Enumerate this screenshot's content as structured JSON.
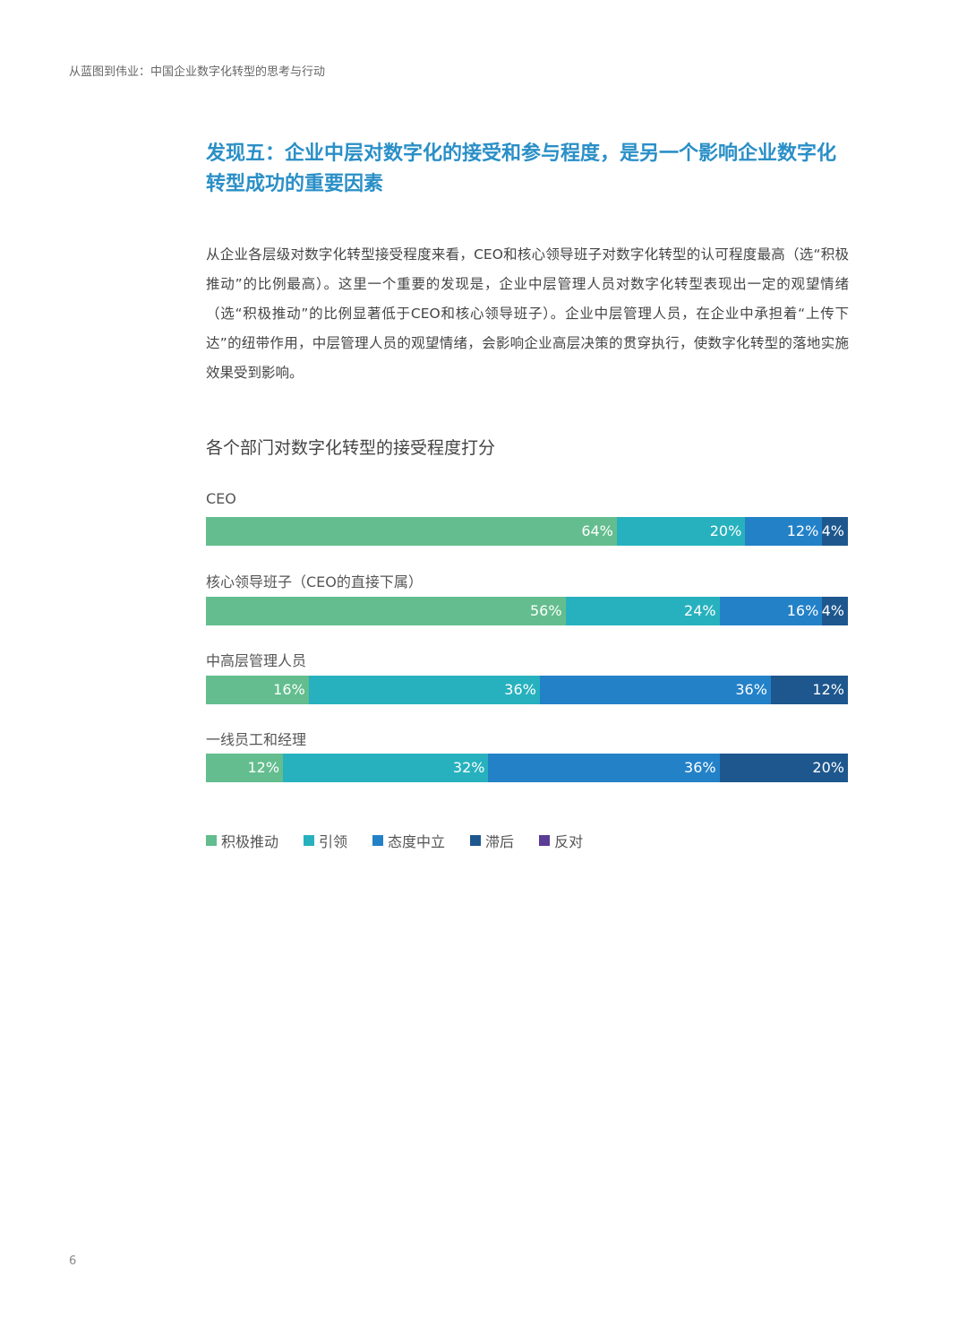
{
  "header": "从蓝图到伟业：中国企业数字化转型的思考与行动",
  "title": "发现五：企业中层对数字化的接受和参与程度，是另一个影响企业数字化转型成功的重要因素",
  "body": "从企业各层级对数字化转型接受程度来看，CEO和核心领导班子对数字化转型的认可程度最高（选“积极推动”的比例最高）。这里一个重要的发现是，企业中层管理人员对数字化转型表现出一定的观望情绪（选“积极推动”的比例显著低于CEO和核心领导班子）。企业中层管理人员，在企业中承担着“上传下达”的纽带作用，中层管理人员的观望情绪，会影响企业高层决策的贯穿执行，使数字化转型的落地实施效果受到影响。",
  "page_number": "6",
  "chart_data": {
    "type": "bar",
    "orientation": "horizontal-stacked-100",
    "title": "各个部门对数字化转型的接受程度打分",
    "categories": [
      "CEO",
      "核心领导班子（CEO的直接下属）",
      "中高层管理人员",
      "一线员工和经理"
    ],
    "series": [
      {
        "name": "积极推动",
        "color": "#63bd8e",
        "values": [
          64,
          56,
          16,
          12
        ]
      },
      {
        "name": "引领",
        "color": "#27b1be",
        "values": [
          20,
          24,
          36,
          32
        ]
      },
      {
        "name": "态度中立",
        "color": "#2381c8",
        "values": [
          12,
          16,
          36,
          36
        ]
      },
      {
        "name": "滞后",
        "color": "#1d578e",
        "values": [
          4,
          4,
          12,
          20
        ]
      },
      {
        "name": "反对",
        "color": "#5b3c96",
        "values": [
          0,
          0,
          0,
          0
        ]
      }
    ],
    "unit": "%",
    "legend": "bottom-left"
  }
}
